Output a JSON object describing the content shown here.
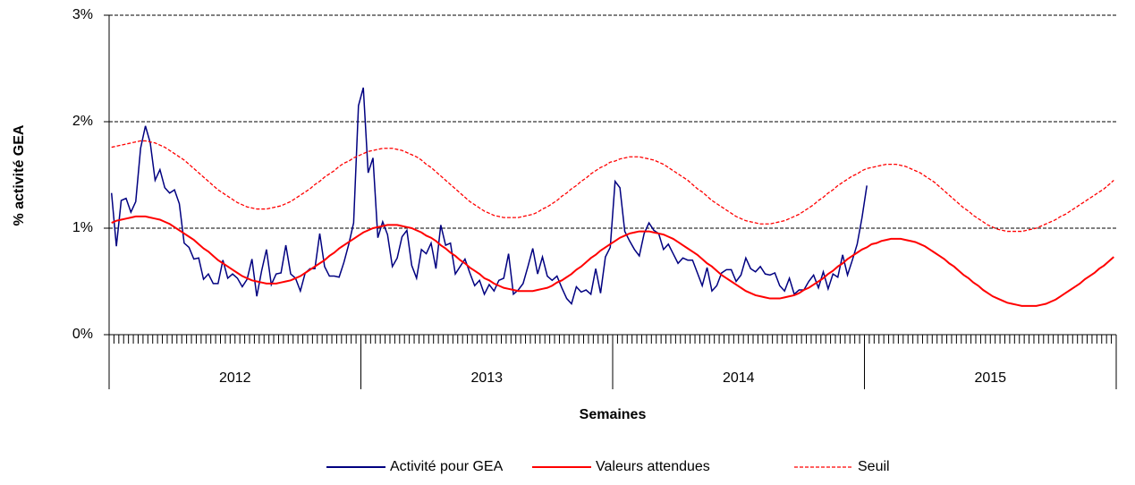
{
  "chart_data": {
    "type": "line",
    "y_label": "% activité GEA",
    "x_label": "Semaines",
    "x_groups": [
      "2012",
      "2013",
      "2014",
      "2015"
    ],
    "ylim": [
      0,
      3
    ],
    "yticks": [
      {
        "value": 0,
        "label": "0%"
      },
      {
        "value": 1,
        "label": "1%"
      },
      {
        "value": 2,
        "label": "2%"
      },
      {
        "value": 3,
        "label": "3%"
      }
    ],
    "grid": true,
    "legend": "bottom",
    "categories": [
      null,
      null,
      null,
      null,
      null,
      null,
      null,
      null,
      null,
      null,
      null,
      null,
      null,
      null,
      null,
      null,
      null,
      null,
      null,
      null,
      null,
      null,
      null,
      null,
      null,
      null,
      null,
      null,
      null,
      null,
      null,
      null,
      null,
      null,
      null,
      null,
      null,
      null,
      null,
      null,
      null,
      null,
      null,
      null,
      null,
      null,
      null,
      null,
      null,
      null,
      null,
      null,
      null,
      null,
      null,
      null,
      null,
      null,
      null,
      null,
      null,
      null,
      null,
      null,
      null,
      null,
      null,
      null,
      null,
      null,
      null,
      null,
      null,
      null,
      null,
      null,
      null,
      null,
      null,
      null,
      null,
      null,
      null,
      null,
      null,
      null,
      null,
      null,
      null,
      null,
      null,
      null,
      null,
      null,
      null,
      null,
      null,
      null,
      null,
      null,
      null,
      null,
      null,
      null,
      null,
      null,
      null,
      null,
      null,
      null,
      null,
      null,
      null,
      null,
      null,
      null,
      null,
      null,
      null,
      null,
      null,
      null,
      null,
      null,
      null,
      null,
      null,
      null,
      null,
      null,
      null,
      null,
      null,
      null,
      null,
      null,
      null,
      null,
      null,
      null,
      null,
      null,
      null,
      null,
      null,
      null,
      null,
      null,
      null,
      null,
      null,
      null,
      null,
      null,
      null,
      null,
      null,
      null,
      null,
      null,
      null,
      null,
      null,
      null,
      null,
      null,
      null,
      null,
      null,
      null,
      null,
      null,
      null,
      null,
      null,
      null,
      null,
      null,
      null,
      null,
      null,
      null,
      null,
      null,
      null,
      null,
      null,
      null,
      null,
      null,
      null,
      null,
      null,
      null,
      null,
      null,
      null,
      null,
      null,
      null,
      null,
      null,
      null,
      null,
      null,
      null,
      null,
      null
    ],
    "series": [
      {
        "name": "Activité pour GEA",
        "color": "#000080",
        "dashed": false,
        "values": [
          1.33,
          0.83,
          1.26,
          1.28,
          1.15,
          1.25,
          1.75,
          1.96,
          1.8,
          1.45,
          1.55,
          1.38,
          1.33,
          1.36,
          1.23,
          0.86,
          0.82,
          0.71,
          0.72,
          0.52,
          0.57,
          0.48,
          0.48,
          0.7,
          0.53,
          0.57,
          0.53,
          0.45,
          0.52,
          0.71,
          0.36,
          0.6,
          0.8,
          0.47,
          0.57,
          0.58,
          0.84,
          0.57,
          0.53,
          0.41,
          0.58,
          0.62,
          0.62,
          0.95,
          0.64,
          0.55,
          0.55,
          0.54,
          0.68,
          0.85,
          1.05,
          2.15,
          2.32,
          1.52,
          1.66,
          0.91,
          1.06,
          0.94,
          0.64,
          0.72,
          0.92,
          0.98,
          0.65,
          0.53,
          0.8,
          0.76,
          0.86,
          0.62,
          1.03,
          0.84,
          0.86,
          0.57,
          0.64,
          0.71,
          0.58,
          0.46,
          0.51,
          0.38,
          0.47,
          0.41,
          0.51,
          0.53,
          0.76,
          0.38,
          0.42,
          0.48,
          0.64,
          0.81,
          0.57,
          0.73,
          0.55,
          0.51,
          0.55,
          0.44,
          0.34,
          0.29,
          0.45,
          0.4,
          0.42,
          0.38,
          0.62,
          0.39,
          0.73,
          0.82,
          1.44,
          1.38,
          0.97,
          0.88,
          0.8,
          0.74,
          0.95,
          1.05,
          0.98,
          0.95,
          0.8,
          0.85,
          0.76,
          0.67,
          0.72,
          0.7,
          0.7,
          0.58,
          0.46,
          0.63,
          0.41,
          0.46,
          0.58,
          0.61,
          0.61,
          0.5,
          0.56,
          0.72,
          0.62,
          0.59,
          0.64,
          0.57,
          0.56,
          0.58,
          0.46,
          0.41,
          0.53,
          0.38,
          0.42,
          0.42,
          0.5,
          0.56,
          0.44,
          0.59,
          0.43,
          0.57,
          0.54,
          0.75,
          0.56,
          0.7,
          0.85,
          1.1,
          1.4,
          null,
          null,
          null,
          null,
          null,
          null,
          null,
          null,
          null,
          null,
          null,
          null,
          null,
          null,
          null,
          null,
          null,
          null,
          null,
          null,
          null,
          null,
          null,
          null,
          null,
          null,
          null,
          null,
          null,
          null,
          null,
          null,
          null,
          null,
          null,
          null,
          null,
          null,
          null,
          null,
          null,
          null,
          null,
          null,
          null,
          null,
          null,
          null,
          null,
          null,
          null
        ]
      },
      {
        "name": "Valeurs attendues",
        "color": "#ff0000",
        "dashed": false,
        "values": [
          1.05,
          1.07,
          1.08,
          1.09,
          1.1,
          1.11,
          1.11,
          1.11,
          1.1,
          1.09,
          1.08,
          1.06,
          1.04,
          1.01,
          0.98,
          0.95,
          0.92,
          0.89,
          0.85,
          0.81,
          0.78,
          0.74,
          0.7,
          0.67,
          0.64,
          0.61,
          0.58,
          0.55,
          0.53,
          0.51,
          0.5,
          0.49,
          0.48,
          0.48,
          0.48,
          0.49,
          0.5,
          0.51,
          0.53,
          0.55,
          0.58,
          0.61,
          0.64,
          0.67,
          0.7,
          0.74,
          0.77,
          0.81,
          0.84,
          0.87,
          0.9,
          0.93,
          0.96,
          0.98,
          1.0,
          1.01,
          1.02,
          1.03,
          1.03,
          1.03,
          1.02,
          1.01,
          1.0,
          0.98,
          0.96,
          0.93,
          0.91,
          0.88,
          0.84,
          0.81,
          0.77,
          0.74,
          0.7,
          0.67,
          0.63,
          0.6,
          0.57,
          0.53,
          0.51,
          0.48,
          0.46,
          0.44,
          0.43,
          0.42,
          0.41,
          0.41,
          0.41,
          0.41,
          0.42,
          0.43,
          0.44,
          0.46,
          0.49,
          0.51,
          0.54,
          0.57,
          0.61,
          0.64,
          0.68,
          0.72,
          0.75,
          0.79,
          0.82,
          0.85,
          0.88,
          0.91,
          0.93,
          0.95,
          0.96,
          0.97,
          0.97,
          0.97,
          0.96,
          0.95,
          0.94,
          0.92,
          0.9,
          0.87,
          0.84,
          0.81,
          0.78,
          0.75,
          0.71,
          0.67,
          0.64,
          0.6,
          0.56,
          0.53,
          0.5,
          0.47,
          0.44,
          0.41,
          0.39,
          0.37,
          0.36,
          0.35,
          0.34,
          0.34,
          0.34,
          0.35,
          0.36,
          0.37,
          0.39,
          0.42,
          0.44,
          0.47,
          0.5,
          0.53,
          0.57,
          0.6,
          0.64,
          0.67,
          0.71,
          0.74,
          0.77,
          0.8,
          0.82,
          0.85,
          0.86,
          0.88,
          0.89,
          0.9,
          0.9,
          0.9,
          0.89,
          0.88,
          0.87,
          0.85,
          0.83,
          0.8,
          0.77,
          0.74,
          0.71,
          0.67,
          0.64,
          0.6,
          0.56,
          0.53,
          0.49,
          0.46,
          0.42,
          0.39,
          0.36,
          0.34,
          0.32,
          0.3,
          0.29,
          0.28,
          0.27,
          0.27,
          0.27,
          0.27,
          0.28,
          0.29,
          0.31,
          0.33,
          0.36,
          0.39,
          0.42,
          0.45,
          0.48,
          0.52,
          0.55,
          0.58,
          0.62,
          0.65,
          0.69,
          0.73
        ]
      },
      {
        "name": "Seuil",
        "color": "#ff0000",
        "dashed": true,
        "values": [
          1.76,
          1.77,
          1.78,
          1.79,
          1.8,
          1.81,
          1.82,
          1.82,
          1.81,
          1.8,
          1.78,
          1.76,
          1.73,
          1.7,
          1.67,
          1.64,
          1.6,
          1.56,
          1.52,
          1.48,
          1.44,
          1.4,
          1.36,
          1.33,
          1.3,
          1.27,
          1.24,
          1.22,
          1.2,
          1.19,
          1.18,
          1.18,
          1.18,
          1.19,
          1.2,
          1.21,
          1.23,
          1.25,
          1.28,
          1.31,
          1.34,
          1.37,
          1.41,
          1.44,
          1.48,
          1.51,
          1.54,
          1.58,
          1.61,
          1.63,
          1.66,
          1.68,
          1.7,
          1.72,
          1.73,
          1.74,
          1.75,
          1.75,
          1.75,
          1.74,
          1.73,
          1.71,
          1.69,
          1.67,
          1.64,
          1.6,
          1.57,
          1.53,
          1.49,
          1.45,
          1.41,
          1.37,
          1.33,
          1.29,
          1.25,
          1.22,
          1.19,
          1.16,
          1.14,
          1.12,
          1.11,
          1.1,
          1.1,
          1.1,
          1.1,
          1.11,
          1.12,
          1.13,
          1.15,
          1.18,
          1.2,
          1.23,
          1.26,
          1.3,
          1.33,
          1.37,
          1.4,
          1.44,
          1.47,
          1.51,
          1.54,
          1.57,
          1.59,
          1.62,
          1.63,
          1.65,
          1.66,
          1.67,
          1.67,
          1.67,
          1.66,
          1.65,
          1.64,
          1.62,
          1.6,
          1.57,
          1.54,
          1.51,
          1.48,
          1.45,
          1.41,
          1.37,
          1.34,
          1.3,
          1.26,
          1.23,
          1.2,
          1.17,
          1.14,
          1.11,
          1.09,
          1.07,
          1.06,
          1.05,
          1.04,
          1.04,
          1.04,
          1.05,
          1.06,
          1.07,
          1.09,
          1.11,
          1.13,
          1.16,
          1.19,
          1.22,
          1.26,
          1.29,
          1.33,
          1.36,
          1.4,
          1.43,
          1.46,
          1.49,
          1.51,
          1.54,
          1.56,
          1.57,
          1.58,
          1.59,
          1.6,
          1.6,
          1.6,
          1.59,
          1.58,
          1.56,
          1.54,
          1.52,
          1.49,
          1.46,
          1.43,
          1.39,
          1.35,
          1.31,
          1.27,
          1.23,
          1.19,
          1.16,
          1.12,
          1.09,
          1.06,
          1.03,
          1.01,
          0.99,
          0.98,
          0.97,
          0.97,
          0.97,
          0.97,
          0.98,
          0.99,
          1.0,
          1.02,
          1.04,
          1.06,
          1.08,
          1.11,
          1.13,
          1.16,
          1.19,
          1.22,
          1.25,
          1.28,
          1.31,
          1.34,
          1.37,
          1.41,
          1.45
        ]
      }
    ]
  }
}
